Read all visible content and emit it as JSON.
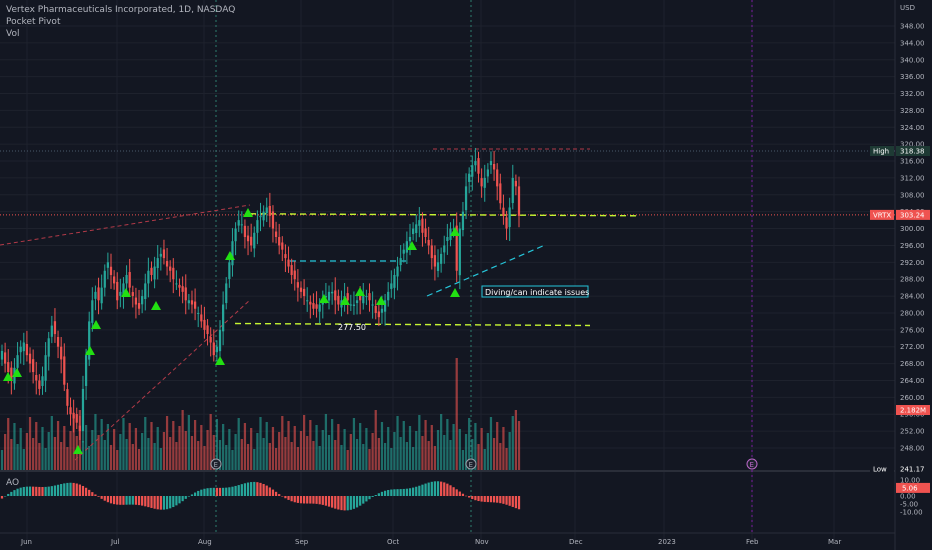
{
  "legend": {
    "title": "Vertex Pharmaceuticals Incorporated, 1D, NASDAQ",
    "indicator": "Pocket Pivot",
    "volume": "Vol"
  },
  "ao_label": "AO",
  "colors": {
    "background": "#131722",
    "up": "#26a69a",
    "down": "#ef5350",
    "grid": "#1e222d",
    "trend_yellow": "#c6f432",
    "trend_cyan": "#26c6da",
    "red_dash": "#b23a48",
    "pivot_marker": "#22e012",
    "earnings_vline": "#2e7d6e",
    "future_vline": "#7b1fa2"
  },
  "chart_data": [
    {
      "type": "candlestick",
      "title": "Vertex Pharmaceuticals Incorporated, 1D, NASDAQ",
      "currency": "USD",
      "ylim": [
        240,
        352
      ],
      "y_ticks": [
        "348.00",
        "344.00",
        "340.00",
        "336.00",
        "332.00",
        "328.00",
        "324.00",
        "320.00",
        "316.00",
        "312.00",
        "308.00",
        "304.00",
        "300.00",
        "296.00",
        "292.00",
        "288.00",
        "284.00",
        "280.00",
        "276.00",
        "272.00",
        "268.00",
        "264.00",
        "260.00",
        "256.00",
        "252.00",
        "248.00"
      ],
      "x_ticks": [
        "Jun",
        "Jul",
        "Aug",
        "Sep",
        "Oct",
        "Nov",
        "Dec",
        "2023",
        "Feb",
        "Mar"
      ],
      "axis_labels": [
        {
          "text": "High",
          "value": "318.38"
        },
        {
          "text": "VRTX",
          "value": "303.24"
        },
        {
          "text": "",
          "value": "2.182M"
        },
        {
          "text": "Low",
          "value": "241.17"
        }
      ],
      "annotations": [
        {
          "text": "277.50"
        },
        {
          "text": "Diving/can indicate issues"
        },
        {
          "text": "E"
        },
        {
          "text": "E"
        },
        {
          "text": "E"
        }
      ],
      "levels": {
        "high": 318.38,
        "last": 303.24,
        "support": 277.5,
        "resistance": 303.5,
        "low": 241.17
      },
      "candles_close": [
        271,
        268,
        266,
        264,
        267,
        270,
        272,
        273,
        270,
        268,
        266,
        264,
        262,
        265,
        270,
        274,
        277,
        275,
        272,
        269,
        263,
        258,
        256,
        255,
        254,
        252,
        262,
        270,
        278,
        283,
        285,
        283,
        286,
        290,
        292,
        289,
        287,
        283,
        285,
        287,
        289,
        286,
        284,
        282,
        281,
        284,
        287,
        290,
        289,
        291,
        293,
        294,
        293,
        291,
        290,
        288,
        287,
        286,
        285,
        283,
        283,
        282,
        281,
        280,
        278,
        276,
        275,
        273,
        270,
        272,
        276,
        282,
        287,
        292,
        297,
        300,
        302,
        301,
        298,
        297,
        296,
        299,
        302,
        303,
        304,
        305,
        303,
        300,
        298,
        296,
        295,
        293,
        291,
        289,
        288,
        286,
        285,
        284,
        283,
        282,
        281,
        281,
        282,
        283,
        284,
        285,
        285,
        283,
        282,
        283,
        284,
        283,
        282,
        282,
        283,
        283,
        284,
        284,
        283,
        282,
        280,
        279,
        281,
        283,
        285,
        287,
        289,
        291,
        293,
        295,
        297,
        298,
        300,
        301,
        302,
        299,
        298,
        296,
        293,
        291,
        292,
        294,
        296,
        298,
        300,
        300,
        290,
        300,
        304,
        310,
        313,
        315,
        316,
        313,
        310,
        312,
        314,
        316,
        314,
        310,
        306,
        303,
        300,
        305,
        312,
        310,
        303
      ],
      "pivot_count": 17
    },
    {
      "type": "bar",
      "title": "Vol",
      "last_value": "2.182M"
    },
    {
      "type": "bar",
      "title": "AO",
      "y_ticks": [
        "10.00",
        "5.00",
        "0.00",
        "-5.00",
        "-10.00"
      ],
      "ylim": [
        -12,
        12
      ],
      "last_value": "5.06"
    }
  ]
}
